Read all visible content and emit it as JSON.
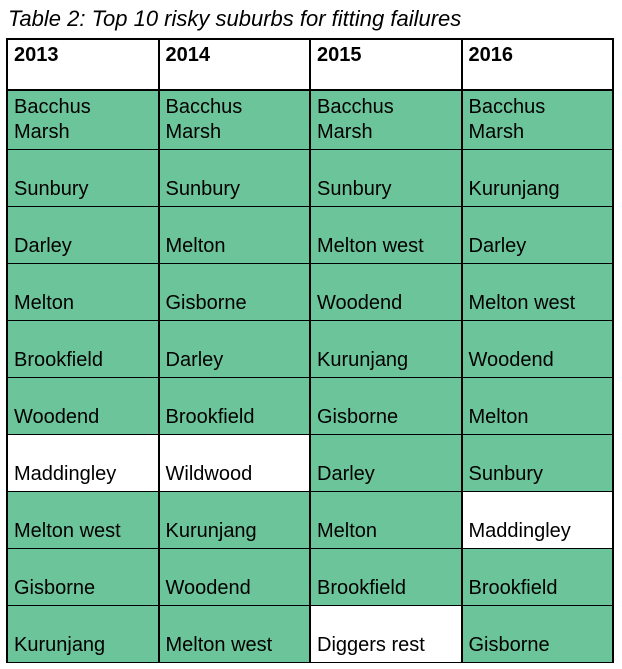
{
  "caption": "Table 2: Top 10 risky suburbs for fitting failures",
  "colors": {
    "highlight": "#6cc49a",
    "plain": "#ffffff",
    "border": "#000000",
    "text": "#000000"
  },
  "columns": [
    "2013",
    "2014",
    "2015",
    "2016"
  ],
  "rows": [
    [
      {
        "text": "Bacchus Marsh",
        "hl": true
      },
      {
        "text": "Bacchus Marsh",
        "hl": true
      },
      {
        "text": "Bacchus Marsh",
        "hl": true
      },
      {
        "text": "Bacchus Marsh",
        "hl": true
      }
    ],
    [
      {
        "text": "Sunbury",
        "hl": true
      },
      {
        "text": "Sunbury",
        "hl": true
      },
      {
        "text": "Sunbury",
        "hl": true
      },
      {
        "text": "Kurunjang",
        "hl": true
      }
    ],
    [
      {
        "text": "Darley",
        "hl": true
      },
      {
        "text": "Melton",
        "hl": true
      },
      {
        "text": "Melton west",
        "hl": true
      },
      {
        "text": "Darley",
        "hl": true
      }
    ],
    [
      {
        "text": "Melton",
        "hl": true
      },
      {
        "text": "Gisborne",
        "hl": true
      },
      {
        "text": "Woodend",
        "hl": true
      },
      {
        "text": "Melton west",
        "hl": true
      }
    ],
    [
      {
        "text": "Brookfield",
        "hl": true
      },
      {
        "text": "Darley",
        "hl": true
      },
      {
        "text": "Kurunjang",
        "hl": true
      },
      {
        "text": "Woodend",
        "hl": true
      }
    ],
    [
      {
        "text": "Woodend",
        "hl": true
      },
      {
        "text": "Brookfield",
        "hl": true
      },
      {
        "text": "Gisborne",
        "hl": true
      },
      {
        "text": "Melton",
        "hl": true
      }
    ],
    [
      {
        "text": "Maddingley",
        "hl": false
      },
      {
        "text": "Wildwood",
        "hl": false
      },
      {
        "text": "Darley",
        "hl": true
      },
      {
        "text": "Sunbury",
        "hl": true
      }
    ],
    [
      {
        "text": "Melton west",
        "hl": true
      },
      {
        "text": "Kurunjang",
        "hl": true
      },
      {
        "text": "Melton",
        "hl": true
      },
      {
        "text": "Maddingley",
        "hl": false
      }
    ],
    [
      {
        "text": "Gisborne",
        "hl": true
      },
      {
        "text": "Woodend",
        "hl": true
      },
      {
        "text": "Brookfield",
        "hl": true
      },
      {
        "text": "Brookfield",
        "hl": true
      }
    ],
    [
      {
        "text": "Kurunjang",
        "hl": true
      },
      {
        "text": "Melton west",
        "hl": true
      },
      {
        "text": "Diggers rest",
        "hl": false
      },
      {
        "text": "Gisborne",
        "hl": true
      }
    ]
  ]
}
